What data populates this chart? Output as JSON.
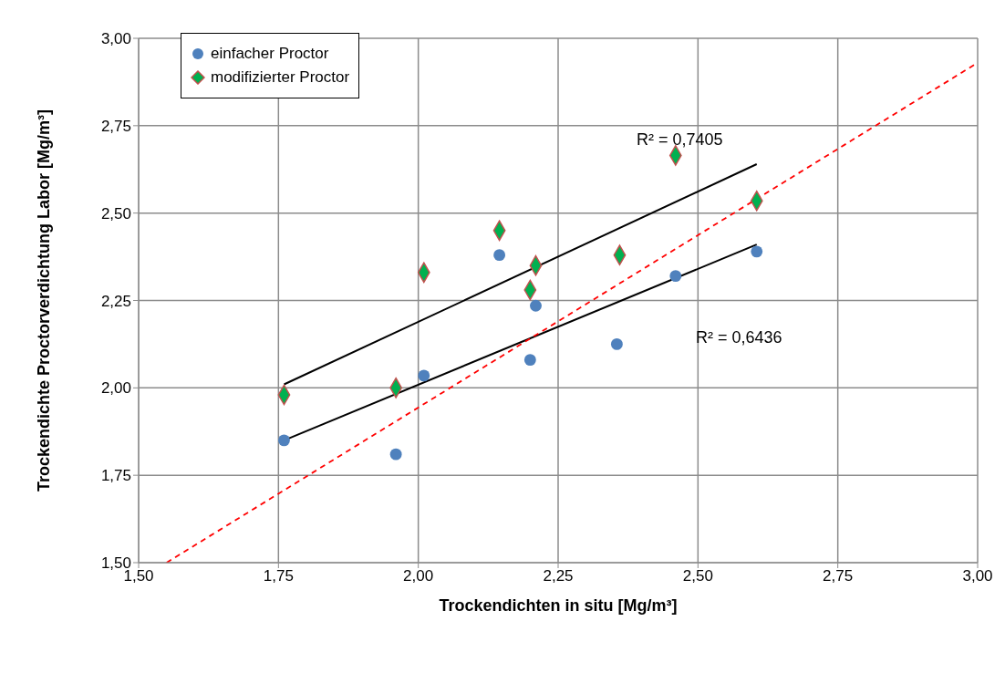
{
  "chart_data": {
    "type": "scatter",
    "xlabel": "Trockendichten in situ [Mg/m³]",
    "ylabel": "Trockendichte Proctorverdichtung Labor [Mg/m³]",
    "xlim": [
      1.5,
      3.0
    ],
    "ylim": [
      1.5,
      3.0
    ],
    "xticks": [
      {
        "value": 1.5,
        "label": "1,50"
      },
      {
        "value": 1.75,
        "label": "1,75"
      },
      {
        "value": 2.0,
        "label": "2,00"
      },
      {
        "value": 2.25,
        "label": "2,25"
      },
      {
        "value": 2.5,
        "label": "2,50"
      },
      {
        "value": 2.75,
        "label": "2,75"
      },
      {
        "value": 3.0,
        "label": "3,00"
      }
    ],
    "yticks": [
      {
        "value": 1.5,
        "label": "1,50"
      },
      {
        "value": 1.75,
        "label": "1,75"
      },
      {
        "value": 2.0,
        "label": "2,00"
      },
      {
        "value": 2.25,
        "label": "2,25"
      },
      {
        "value": 2.5,
        "label": "2,50"
      },
      {
        "value": 2.75,
        "label": "2,75"
      },
      {
        "value": 3.0,
        "label": "3,00"
      }
    ],
    "grid": true,
    "legend": "top left",
    "series": [
      {
        "name": "einfacher Proctor",
        "marker": "circle",
        "color": "#4f81bd",
        "x": [
          1.76,
          1.96,
          2.01,
          2.145,
          2.21,
          2.2,
          2.355,
          2.46,
          2.605
        ],
        "values": [
          1.85,
          1.81,
          2.035,
          2.38,
          2.235,
          2.08,
          2.125,
          2.32,
          2.39
        ]
      },
      {
        "name": "modifizierter Proctor",
        "marker": "diamond",
        "color": "#00b050",
        "x": [
          1.76,
          1.96,
          2.01,
          2.145,
          2.21,
          2.2,
          2.36,
          2.46,
          2.605
        ],
        "values": [
          1.98,
          2.0,
          2.33,
          2.45,
          2.35,
          2.28,
          2.38,
          2.665,
          2.535
        ]
      },
      {
        "type": "line",
        "marker": "none",
        "line_style": "solid",
        "color": "#000000",
        "x": [
          1.76,
          2.605
        ],
        "values": [
          1.85,
          2.41
        ]
      },
      {
        "type": "line",
        "marker": "none",
        "line_style": "solid",
        "color": "#000000",
        "x": [
          1.76,
          2.605
        ],
        "values": [
          2.01,
          2.64
        ]
      },
      {
        "type": "line",
        "marker": "none",
        "line_style": "dashed",
        "color": "#ff0000",
        "x": [
          1.55,
          3.0
        ],
        "values": [
          1.5,
          2.93
        ]
      }
    ],
    "annotations": [
      "R² = 0,7405",
      "R² = 0,6436"
    ]
  }
}
